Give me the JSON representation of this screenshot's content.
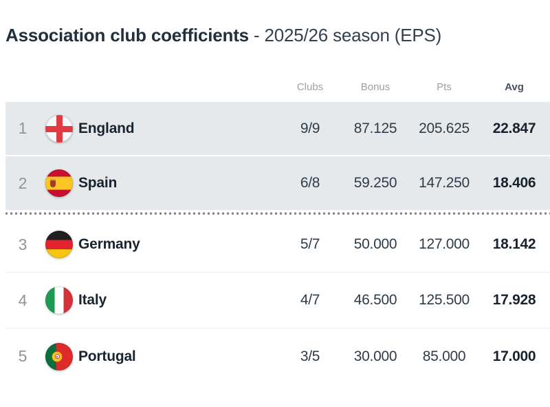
{
  "page": {
    "title_main": "Association club coefficients",
    "title_sub": "- 2025/26 season (EPS)"
  },
  "table": {
    "headers": {
      "clubs": "Clubs",
      "bonus": "Bonus",
      "pts": "Pts",
      "avg": "Avg"
    },
    "qualification_cutoff_after_row": 2,
    "rows": [
      {
        "rank": "1",
        "country": "England",
        "flag": "england",
        "clubs": "9/9",
        "bonus": "87.125",
        "pts": "205.625",
        "avg": "22.847",
        "highlighted": true
      },
      {
        "rank": "2",
        "country": "Spain",
        "flag": "spain",
        "clubs": "6/8",
        "bonus": "59.250",
        "pts": "147.250",
        "avg": "18.406",
        "highlighted": true
      },
      {
        "rank": "3",
        "country": "Germany",
        "flag": "germany",
        "clubs": "5/7",
        "bonus": "50.000",
        "pts": "127.000",
        "avg": "18.142",
        "highlighted": false
      },
      {
        "rank": "4",
        "country": "Italy",
        "flag": "italy",
        "clubs": "4/7",
        "bonus": "46.500",
        "pts": "125.500",
        "avg": "17.928",
        "highlighted": false
      },
      {
        "rank": "5",
        "country": "Portugal",
        "flag": "portugal",
        "clubs": "3/5",
        "bonus": "30.000",
        "pts": "85.000",
        "avg": "17.000",
        "highlighted": false
      }
    ]
  },
  "colors": {
    "highlight_row_bg": "#e6e9eb",
    "title_text": "#22303e",
    "header_label": "#9aa1a9",
    "separator_dots": "#7f878f",
    "england_red": "#e03a43",
    "avg_text": "#17222e"
  }
}
